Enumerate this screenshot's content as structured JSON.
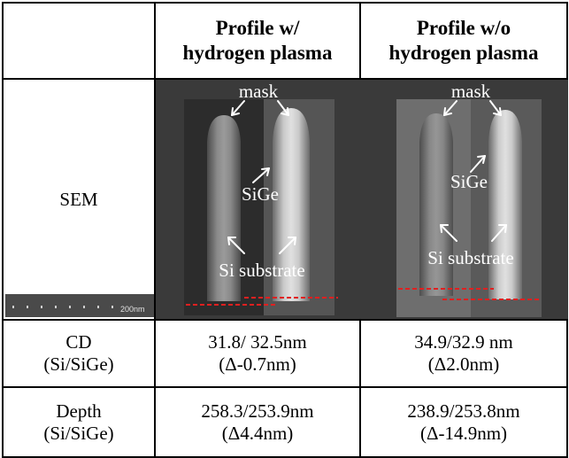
{
  "header": {
    "col1": "Profile w/ hydrogen plasma",
    "col1_line1": "Profile w/",
    "col1_line2": "hydrogen plasma",
    "col2_line1": "Profile w/o",
    "col2_line2": "hydrogen plasma"
  },
  "rows": {
    "sem": {
      "label": "SEM",
      "scalebar": "200nm"
    },
    "cd": {
      "label_line1": "CD",
      "label_line2": "(Si/SiGe)",
      "v1_line1": "31.8/ 32.5nm",
      "v1_line2": "(Δ-0.7nm)",
      "v2_line1": "34.9/32.9 nm",
      "v2_line2": "(Δ2.0nm)"
    },
    "depth": {
      "label_line1": "Depth",
      "label_line2": "(Si/SiGe)",
      "v1_line1": "258.3/253.9nm",
      "v1_line2": "(Δ4.4nm)",
      "v2_line1": "238.9/253.8nm",
      "v2_line2": "(Δ-14.9nm)"
    }
  },
  "annotations": {
    "mask": "mask",
    "sige": "SiGe",
    "si_substrate": "Si substrate"
  },
  "colors": {
    "baseline": "#e02020",
    "panel_bg": "#3a3a3a"
  }
}
